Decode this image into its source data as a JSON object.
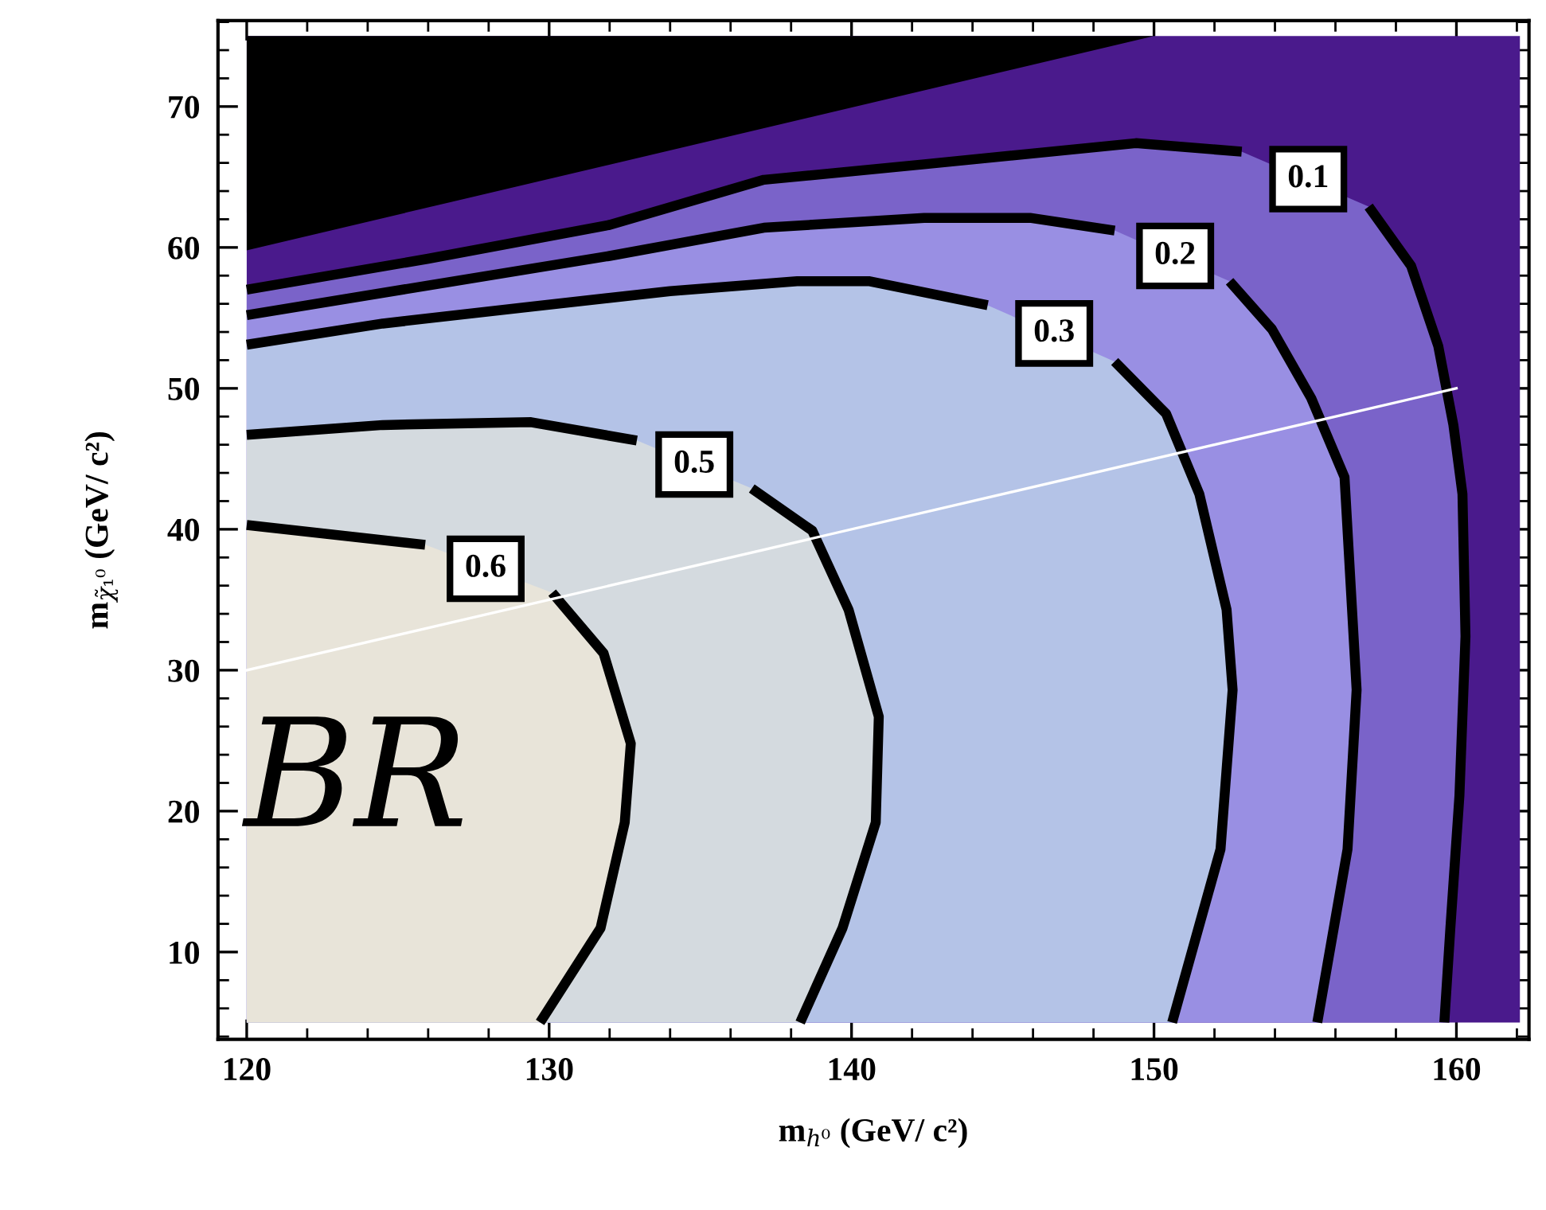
{
  "chart_data": {
    "type": "area",
    "xlabel": "m$_{h⁰}$ (GeV/ c²)",
    "ylabel": "m$_{χ̃₁⁰}$ (GeV/ c²)",
    "xlim": [
      119.05,
      162.4
    ],
    "ylim": [
      3.8,
      76.1
    ],
    "xticks": [
      120,
      {
        "value": 122,
        "label": null
      },
      {
        "value": 124,
        "label": null
      },
      {
        "value": 126,
        "label": null
      },
      {
        "value": 128,
        "label": null
      },
      130,
      {
        "value": 132,
        "label": null
      },
      {
        "value": 134,
        "label": null
      },
      {
        "value": 136,
        "label": null
      },
      {
        "value": 138,
        "label": null
      },
      140,
      {
        "value": 142,
        "label": null
      },
      {
        "value": 144,
        "label": null
      },
      {
        "value": 146,
        "label": null
      },
      {
        "value": 148,
        "label": null
      },
      150,
      {
        "value": 152,
        "label": null
      },
      {
        "value": 154,
        "label": null
      },
      {
        "value": 156,
        "label": null
      },
      {
        "value": 158,
        "label": null
      },
      160,
      {
        "value": 162,
        "label": null
      }
    ],
    "yticks": [
      {
        "value": 4,
        "label": null
      },
      {
        "value": 6,
        "label": null
      },
      {
        "value": 8,
        "label": null
      },
      10,
      {
        "value": 12,
        "label": null
      },
      {
        "value": 14,
        "label": null
      },
      {
        "value": 16,
        "label": null
      },
      {
        "value": 18,
        "label": null
      },
      20,
      {
        "value": 22,
        "label": null
      },
      {
        "value": 24,
        "label": null
      },
      {
        "value": 26,
        "label": null
      },
      {
        "value": 28,
        "label": null
      },
      30,
      {
        "value": 32,
        "label": null
      },
      {
        "value": 34,
        "label": null
      },
      {
        "value": 36,
        "label": null
      },
      {
        "value": 38,
        "label": null
      },
      40,
      {
        "value": 42,
        "label": null
      },
      {
        "value": 44,
        "label": null
      },
      {
        "value": 46,
        "label": null
      },
      {
        "value": 48,
        "label": null
      },
      50,
      {
        "value": 52,
        "label": null
      },
      {
        "value": 54,
        "label": null
      },
      {
        "value": 56,
        "label": null
      },
      {
        "value": 58,
        "label": null
      },
      60,
      {
        "value": 62,
        "label": null
      },
      {
        "value": 64,
        "label": null
      },
      {
        "value": 66,
        "label": null
      },
      {
        "value": 68,
        "label": null
      },
      70,
      {
        "value": 72,
        "label": null
      },
      {
        "value": 74,
        "label": null
      },
      {
        "value": 76,
        "label": null
      }
    ],
    "annotations": [
      "BR"
    ],
    "series": [
      {
        "color": "#4a1a8c",
        "x": [
          120,
          162.1,
          162.1,
          120
        ],
        "values": [
          5,
          5,
          75,
          75
        ]
      },
      {
        "color": "#000000",
        "x": [
          120,
          150,
          120
        ],
        "values": [
          59.8,
          75,
          75
        ]
      },
      {
        "name": "0.1",
        "color": "#7a63c9",
        "line_style": "solid",
        "x": [
          120,
          126,
          132,
          137.1,
          142.4,
          149.4,
          152.9,
          155.1,
          157.1,
          158.5,
          159.4,
          159.9,
          160.2,
          160.3,
          160.1,
          159.8,
          159.6
        ],
        "values": [
          57.0,
          59.2,
          61.6,
          64.8,
          65.9,
          67.4,
          66.8,
          null,
          62.9,
          58.7,
          53.0,
          47.4,
          42.5,
          32.4,
          21.1,
          11.7,
          5.0
        ]
      },
      {
        "name": "0.2",
        "color": "#998fe3",
        "line_style": "solid",
        "x": [
          120,
          126,
          132,
          137.1,
          142.4,
          145.9,
          148.7,
          150.7,
          152.5,
          153.9,
          155.2,
          156.3,
          156.7,
          156.4,
          155.4
        ],
        "values": [
          55.2,
          57.3,
          59.4,
          61.4,
          62.1,
          62.1,
          61.2,
          null,
          57.6,
          54.2,
          49.3,
          43.7,
          28.6,
          17.3,
          5.0
        ]
      },
      {
        "name": "0.3",
        "color": "#b4c3e7",
        "line_style": "solid",
        "x": [
          120,
          124.5,
          129.4,
          134,
          138.2,
          140.6,
          144.5,
          146.7,
          148.7,
          150.4,
          151.5,
          152.4,
          152.6,
          152.2,
          150.6
        ],
        "values": [
          53.1,
          54.6,
          55.8,
          56.9,
          57.6,
          57.6,
          55.9,
          null,
          51.9,
          48.2,
          42.5,
          34.3,
          28.6,
          17.3,
          5.0
        ]
      },
      {
        "name": "0.5",
        "color": "#d4dadf",
        "line_style": "solid",
        "x": [
          120,
          124.5,
          129.4,
          132.9,
          134.8,
          136.7,
          138.7,
          139.9,
          140.9,
          140.8,
          139.7,
          138.3
        ],
        "values": [
          46.7,
          47.4,
          47.6,
          46.3,
          null,
          42.9,
          39.9,
          34.3,
          26.7,
          19.2,
          11.7,
          5.0
        ]
      },
      {
        "name": "0.6",
        "color": "#e8e4d9",
        "line_style": "solid",
        "x": [
          120,
          125.9,
          127.9,
          130.1,
          131.8,
          132.7,
          132.5,
          131.7,
          129.7
        ],
        "values": [
          40.3,
          38.9,
          null,
          35.5,
          31.2,
          24.8,
          19.2,
          11.7,
          5.0
        ]
      },
      {
        "type": "line",
        "color": "#ffffff",
        "x": [
          120,
          160
        ],
        "values": [
          30,
          50
        ]
      }
    ]
  }
}
